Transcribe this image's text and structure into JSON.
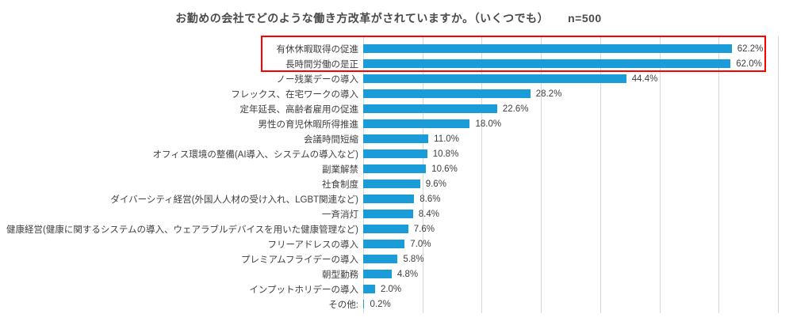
{
  "chart_data": {
    "type": "bar",
    "orientation": "horizontal",
    "title": "お勤めの会社でどのような働き方改革がされていますか。（いくつでも）",
    "n_label": "n=500",
    "categories": [
      "有休休暇取得の促進",
      "長時間労働の是正",
      "ノー残業デーの導入",
      "フレックス、在宅ワークの導入",
      "定年延長、高齢者雇用の促進",
      "男性の育児休暇所得推進",
      "会議時間短縮",
      "オフィス環境の整備(AI導入、システムの導入など)",
      "副業解禁",
      "社食制度",
      "ダイバーシティ経営(外国人人材の受け入れ、LGBT関連など)",
      "一斉消灯",
      "健康経営(健康に関するシステムの導入、ウェアラブルデバイスを用いた健康管理など)",
      "フリーアドレスの導入",
      "プレミアムフライデーの導入",
      "朝型勤務",
      "インプットホリデーの導入",
      "その他:"
    ],
    "values": [
      62.2,
      62.0,
      44.4,
      28.2,
      22.6,
      18.0,
      11.0,
      10.8,
      10.6,
      9.6,
      8.6,
      8.4,
      7.6,
      7.0,
      5.8,
      4.8,
      2.0,
      0.2
    ],
    "value_labels": [
      "62.2%",
      "62.0%",
      "44.4%",
      "28.2%",
      "22.6%",
      "18.0%",
      "11.0%",
      "10.8%",
      "10.6%",
      "9.6%",
      "8.6%",
      "8.4%",
      "7.6%",
      "7.0%",
      "5.8%",
      "4.8%",
      "2.0%",
      "0.2%"
    ],
    "xlabel": "",
    "ylabel": "",
    "xlim": [
      0,
      70
    ],
    "gridline_interval": 10,
    "grid": "vertical",
    "legend_position": "none",
    "bar_color": "#1a9cd8",
    "grid_color": "#d9d9d9",
    "text_color": "#404040",
    "highlight": {
      "highlighted_categories": [
        "有休休暇取得の促進",
        "長時間労働の是正"
      ],
      "color": "#fe0000"
    }
  }
}
